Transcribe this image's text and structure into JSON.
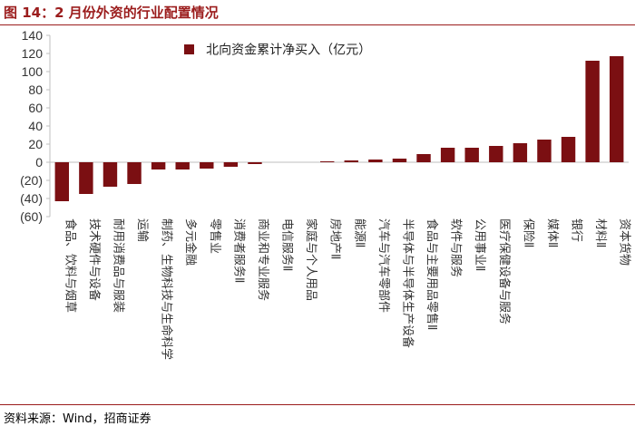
{
  "title": "图 14：2 月份外资的行业配置情况",
  "source": "资料来源：Wind，招商证券",
  "colors": {
    "bar": "#7b0f12",
    "title": "#9b1c1c",
    "axis": "#bfbfbf",
    "text": "#333333"
  },
  "chart_data": {
    "type": "bar",
    "title": "",
    "xlabel": "",
    "ylabel": "",
    "ylim": [
      -60,
      140
    ],
    "yticks": [
      140,
      120,
      100,
      80,
      60,
      40,
      20,
      0,
      -20,
      -40,
      -60
    ],
    "ytick_labels": [
      "140",
      "120",
      "100",
      "80",
      "60",
      "40",
      "20",
      "0",
      "(20)",
      "(40)",
      "(60)"
    ],
    "grid": false,
    "legend_position": "top-left",
    "categories": [
      "食品、饮料与烟草",
      "技术硬件与设备",
      "耐用消费品与服装",
      "运输",
      "制药、生物科技与生命科学",
      "多元金融",
      "零售业",
      "消费者服务Ⅱ",
      "商业和专业服务",
      "电信服务Ⅱ",
      "家庭与个人用品",
      "房地产Ⅱ",
      "能源Ⅱ",
      "汽车与汽车零部件",
      "半导体与半导体生产设备",
      "食品与主要用品零售Ⅱ",
      "软件与服务",
      "公用事业Ⅱ",
      "医疗保健设备与服务",
      "保险Ⅱ",
      "媒体Ⅱ",
      "银行",
      "材料Ⅱ",
      "资本货物"
    ],
    "series": [
      {
        "name": "北向资金累计净买入（亿元）",
        "values": [
          -43,
          -35,
          -27,
          -24,
          -8,
          -8,
          -7,
          -5,
          -2,
          0,
          0,
          1,
          2,
          3,
          4,
          9,
          16,
          16,
          18,
          21,
          25,
          28,
          112,
          117
        ]
      }
    ]
  }
}
